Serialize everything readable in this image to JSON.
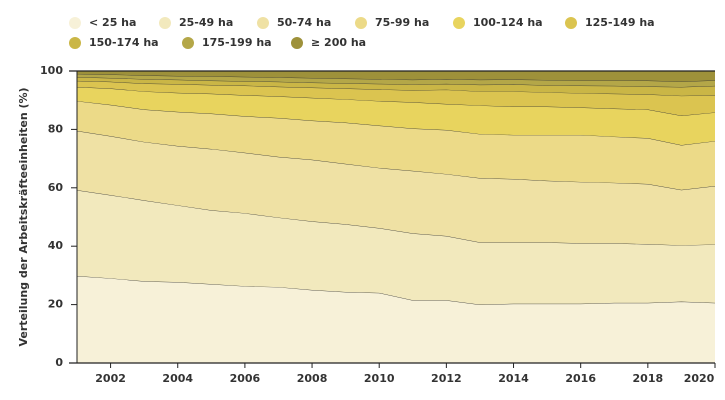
{
  "chart_data": {
    "type": "stacked_area",
    "y_label": "Verteilung der Arbeitskräfteeinheiten (%)",
    "x": [
      2001,
      2002,
      2003,
      2004,
      2005,
      2006,
      2007,
      2008,
      2009,
      2010,
      2011,
      2012,
      2013,
      2014,
      2015,
      2016,
      2017,
      2018,
      2019,
      2020
    ],
    "xlim": [
      2001,
      2020
    ],
    "xticks": [
      2002,
      2004,
      2006,
      2008,
      2010,
      2012,
      2014,
      2016,
      2018,
      2020
    ],
    "ylim": [
      0,
      100
    ],
    "yticks": [
      0,
      20,
      40,
      60,
      80,
      100
    ],
    "series": [
      {
        "name": "< 25 ha",
        "color": "#f7f1d8",
        "values": [
          29.8,
          29,
          28,
          27.7,
          27,
          26.3,
          26,
          25,
          24.3,
          24,
          21.5,
          21.5,
          20,
          20.3,
          20.3,
          20.3,
          20.6,
          20.6,
          21,
          20.6
        ]
      },
      {
        "name": "25-49 ha",
        "color": "#f2e9bd",
        "values": [
          29.4,
          28.5,
          27.7,
          26.3,
          25.3,
          25,
          23.8,
          23.5,
          23.2,
          22.2,
          22.9,
          22,
          21.3,
          21,
          21,
          20.7,
          20.4,
          20.1,
          19.3,
          20
        ]
      },
      {
        "name": "50-74 ha",
        "color": "#efe1a4",
        "values": [
          20.3,
          20.2,
          20,
          20.3,
          21,
          20.7,
          20.8,
          21.1,
          20.7,
          20.6,
          21.4,
          21.2,
          22,
          21.7,
          21.1,
          21,
          20.7,
          20.6,
          19,
          20
        ]
      },
      {
        "name": "75-99 ha",
        "color": "#ecda88",
        "values": [
          10.2,
          10.7,
          11.1,
          11.7,
          12.1,
          12.5,
          13.3,
          13.4,
          14.1,
          14.5,
          14.5,
          15.1,
          15.1,
          15.1,
          15.7,
          16.1,
          15.8,
          15.7,
          15.3,
          15.4
        ]
      },
      {
        "name": "100-124 ha",
        "color": "#e8d45e",
        "values": [
          4.8,
          5.6,
          6.2,
          6.5,
          6.8,
          7.2,
          7.4,
          7.8,
          8,
          8.4,
          9,
          8.9,
          9.8,
          9.7,
          9.7,
          9.4,
          9.6,
          9.8,
          10.1,
          9.8
        ]
      },
      {
        "name": "125-149 ha",
        "color": "#dbc450",
        "values": [
          2.1,
          2.3,
          2.7,
          3,
          3,
          3.3,
          3.3,
          3.5,
          3.7,
          4,
          4.1,
          4.9,
          4.8,
          5.2,
          4.9,
          4.9,
          5.1,
          5.2,
          6.8,
          5.9
        ]
      },
      {
        "name": "150-174 ha",
        "color": "#cab646",
        "values": [
          1.3,
          1.3,
          1.5,
          1.5,
          1.5,
          1.5,
          1.7,
          1.7,
          1.8,
          1.9,
          2,
          2,
          2.3,
          2.4,
          2.4,
          2.6,
          2.7,
          2.7,
          3,
          3.2
        ]
      },
      {
        "name": "175-199 ha",
        "color": "#b4a748",
        "values": [
          1.1,
          1.2,
          1.3,
          1.3,
          1.5,
          1.5,
          1.5,
          1.6,
          1.6,
          1.6,
          1.6,
          1.6,
          1.7,
          1.7,
          1.8,
          1.8,
          1.9,
          2,
          1.9,
          1.9
        ]
      },
      {
        "name": "≥ 200 ha",
        "color": "#9e913a",
        "values": [
          1,
          1.2,
          1.5,
          1.7,
          1.8,
          2,
          2.2,
          2.4,
          2.6,
          2.8,
          3,
          2.8,
          3,
          2.9,
          3.1,
          3.2,
          3.2,
          3.3,
          3.6,
          3.2
        ]
      }
    ]
  }
}
